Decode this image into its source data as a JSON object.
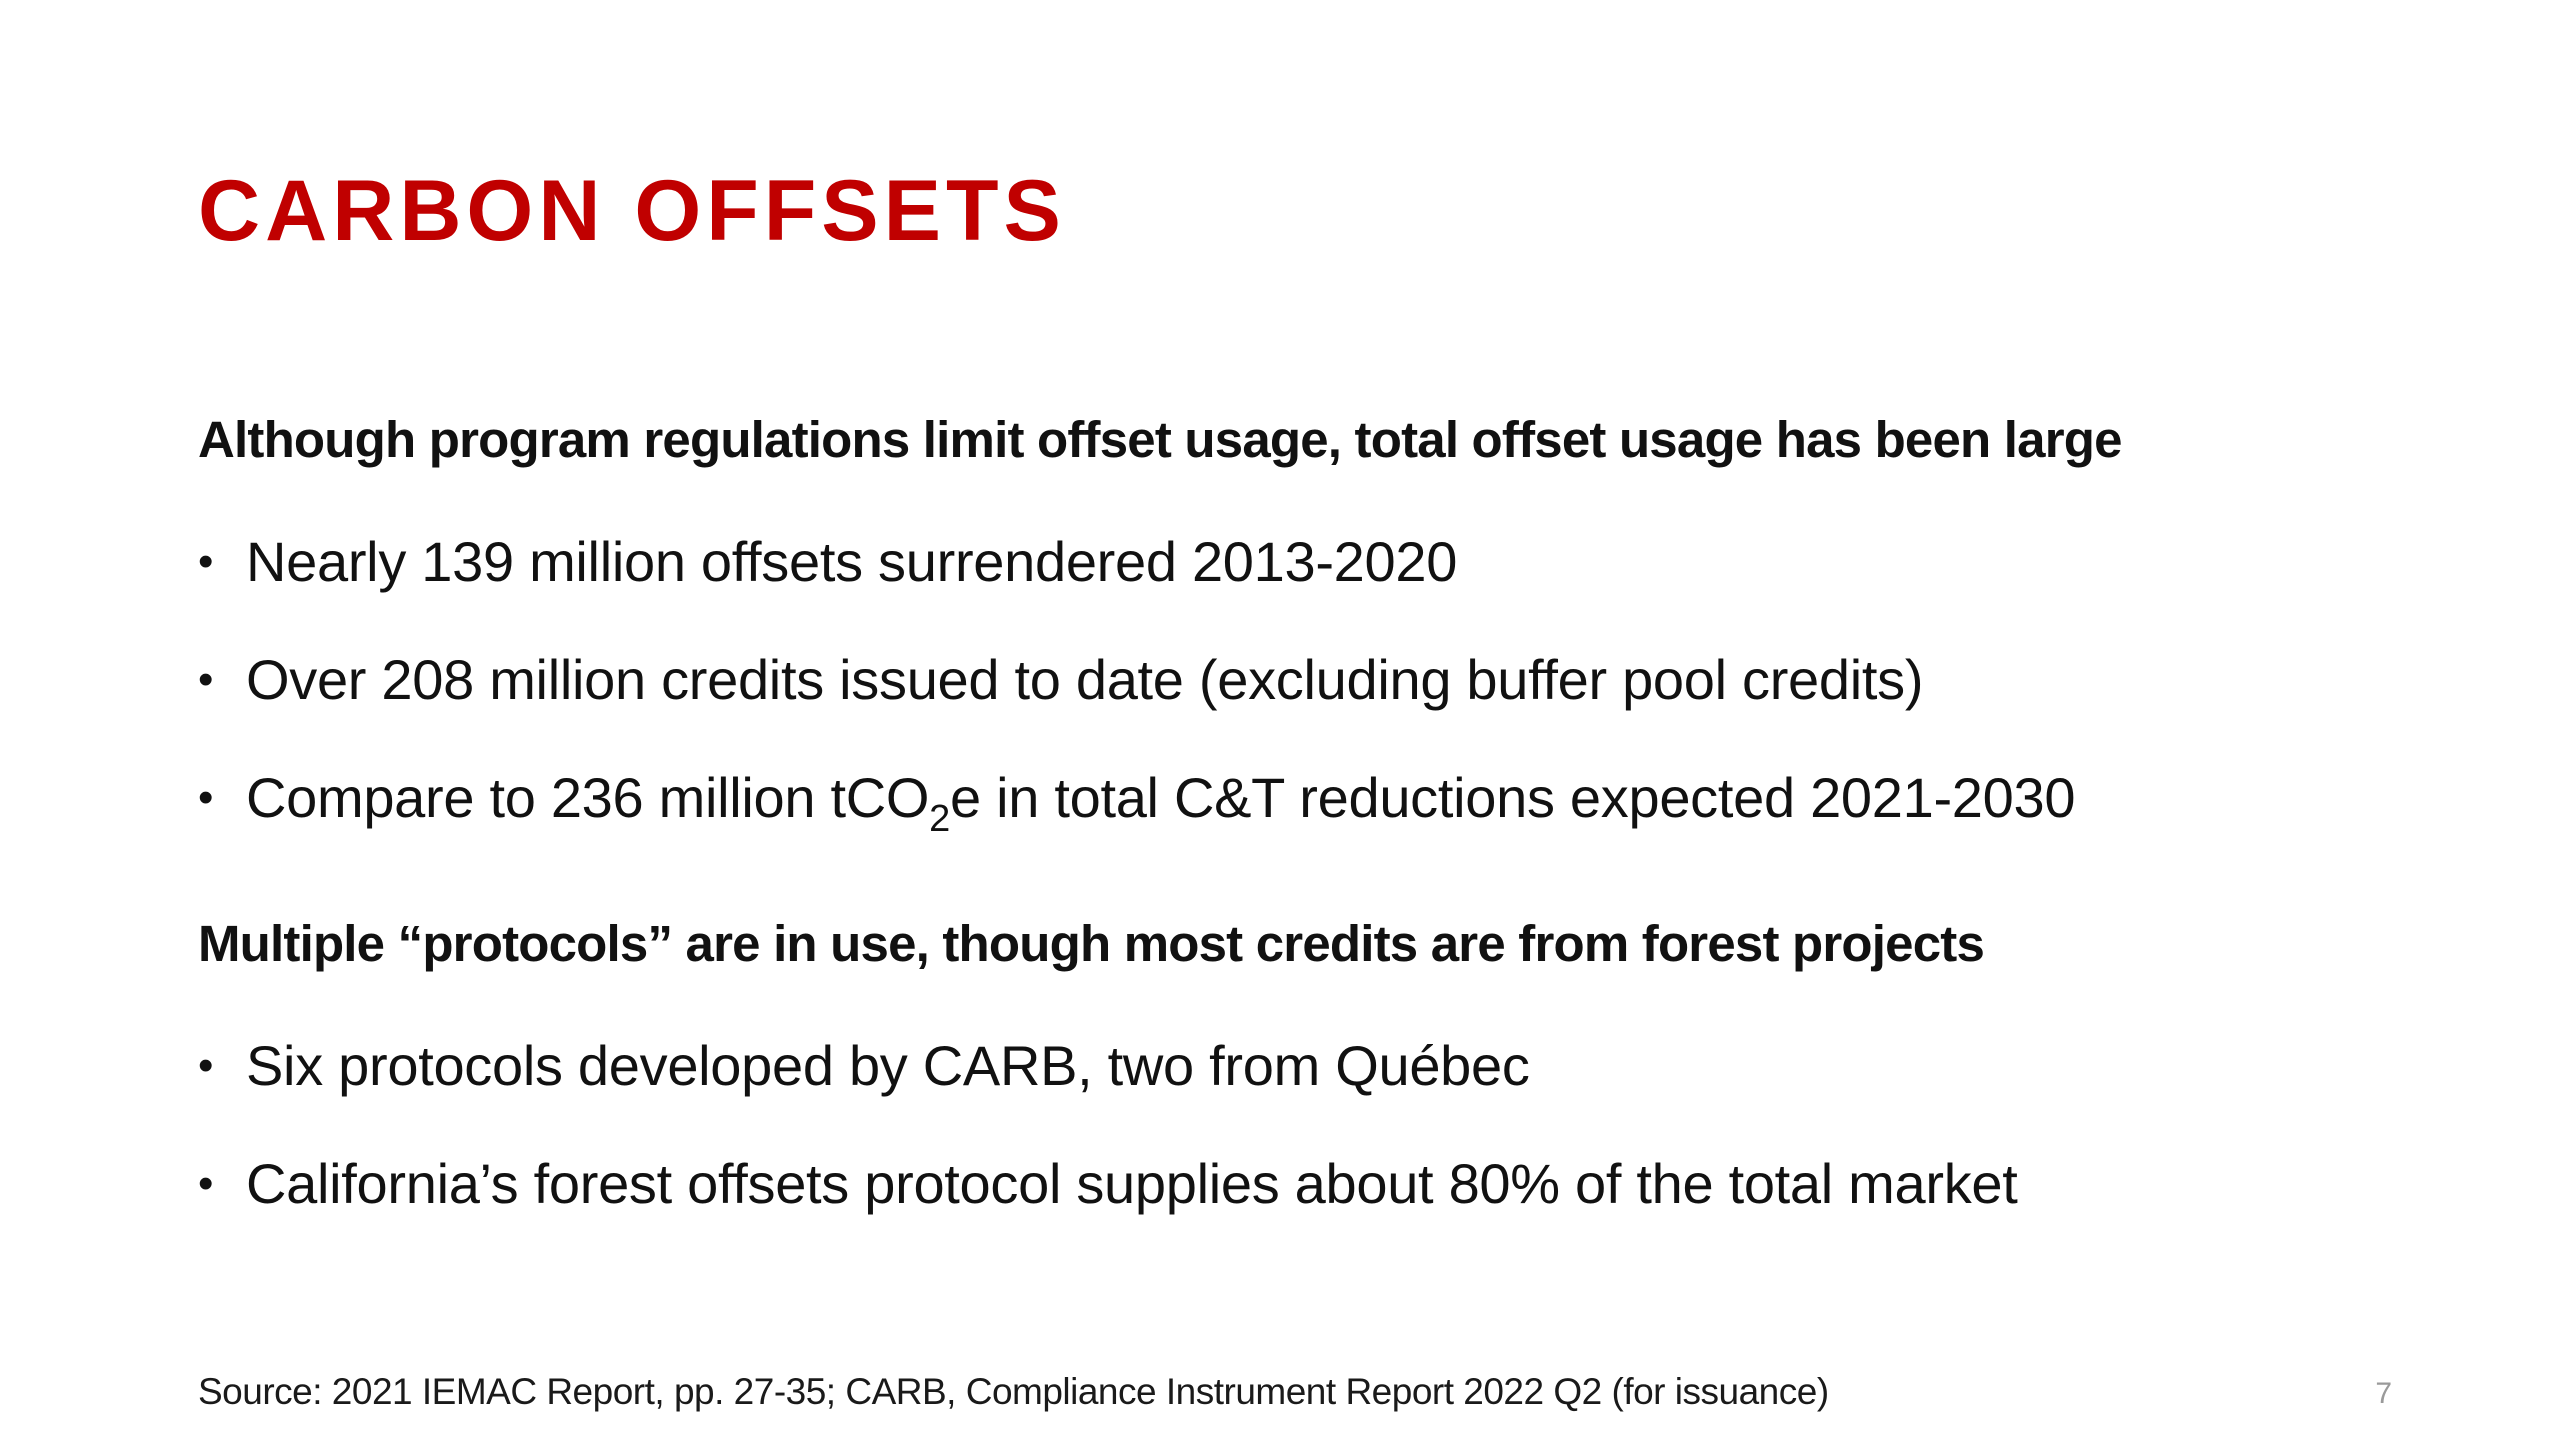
{
  "colors": {
    "title": "#c00000",
    "text": "#111111",
    "page_number": "#9a9a9a",
    "background": "#ffffff"
  },
  "slide": {
    "title": "CARBON OFFSETS",
    "sections": [
      {
        "heading": "Although program regulations limit offset usage, total offset usage has been large",
        "bullets": [
          {
            "text": "Nearly 139 million offsets surrendered 2013-2020"
          },
          {
            "text": "Over 208 million credits issued to date (excluding buffer pool credits)"
          },
          {
            "text_before": "Compare to 236 million tCO",
            "subscript": "2",
            "text_after": "e in total C&T reductions expected 2021-2030"
          }
        ]
      },
      {
        "heading": "Multiple “protocols” are in use, though most credits are from forest projects",
        "bullets": [
          {
            "text": "Six protocols developed by CARB, two from Québec"
          },
          {
            "text": "California’s forest offsets protocol supplies about 80% of the total market"
          }
        ]
      }
    ],
    "bullet_glyph": "•",
    "source": "Source: 2021 IEMAC Report, pp. 27-35; CARB, Compliance Instrument Report 2022 Q2 (for issuance)",
    "page_number": "7"
  }
}
